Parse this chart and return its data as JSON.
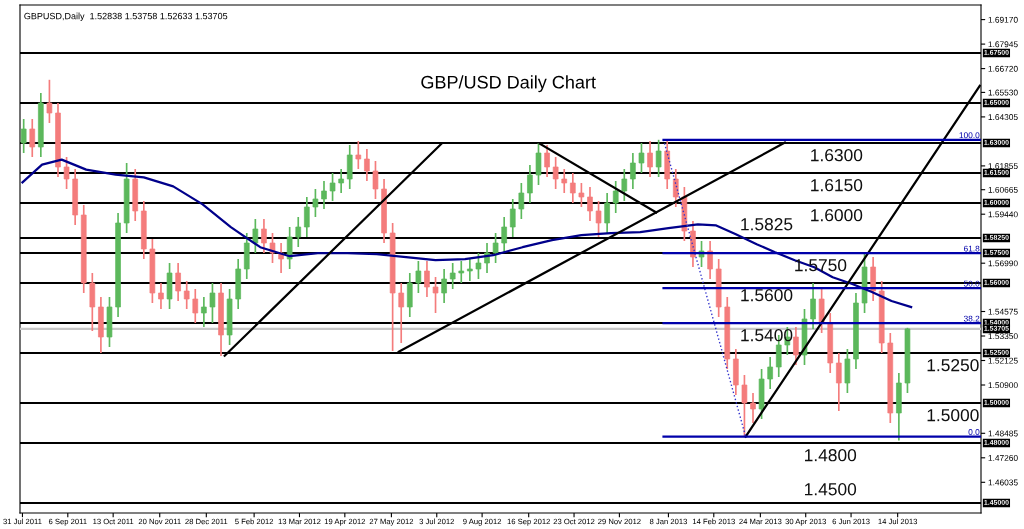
{
  "chart_data": {
    "type": "candlestick",
    "title": "GBP/USD Daily Chart",
    "subtitle": "GBPUSD,Daily  1.52838 1.53758 1.52633 1.53705",
    "x": [
      "2011-08-01",
      "2011-08-08",
      "2011-08-15",
      "2011-08-22",
      "2011-08-29",
      "2011-09-05",
      "2011-09-12",
      "2011-09-19",
      "2011-09-26",
      "2011-10-03",
      "2011-10-10",
      "2011-10-17",
      "2011-10-24",
      "2011-10-31",
      "2011-11-07",
      "2011-11-14",
      "2011-11-21",
      "2011-11-28",
      "2011-12-05",
      "2011-12-12",
      "2011-12-19",
      "2011-12-26",
      "2012-01-02",
      "2012-01-09",
      "2012-01-16",
      "2012-01-23",
      "2012-01-30",
      "2012-02-06",
      "2012-02-13",
      "2012-02-20",
      "2012-02-27",
      "2012-03-05",
      "2012-03-12",
      "2012-03-19",
      "2012-03-26",
      "2012-04-02",
      "2012-04-09",
      "2012-04-16",
      "2012-04-23",
      "2012-04-30",
      "2012-05-07",
      "2012-05-14",
      "2012-05-21",
      "2012-05-28",
      "2012-06-04",
      "2012-06-11",
      "2012-06-18",
      "2012-06-25",
      "2012-07-02",
      "2012-07-09",
      "2012-07-16",
      "2012-07-23",
      "2012-07-30",
      "2012-08-06",
      "2012-08-13",
      "2012-08-20",
      "2012-08-27",
      "2012-09-03",
      "2012-09-10",
      "2012-09-17",
      "2012-09-24",
      "2012-10-01",
      "2012-10-08",
      "2012-10-15",
      "2012-10-22",
      "2012-10-29",
      "2012-11-05",
      "2012-11-12",
      "2012-11-19",
      "2012-11-26",
      "2012-12-03",
      "2012-12-10",
      "2012-12-17",
      "2012-12-24",
      "2012-12-31",
      "2013-01-07",
      "2013-01-14",
      "2013-01-21",
      "2013-01-28",
      "2013-02-04",
      "2013-02-11",
      "2013-02-18",
      "2013-02-25",
      "2013-03-04",
      "2013-03-11",
      "2013-03-18",
      "2013-03-25",
      "2013-04-01",
      "2013-04-08",
      "2013-04-15",
      "2013-04-22",
      "2013-04-29",
      "2013-05-06",
      "2013-05-13",
      "2013-05-20",
      "2013-05-27",
      "2013-06-03",
      "2013-06-10",
      "2013-06-17",
      "2013-06-24",
      "2013-07-01",
      "2013-07-08",
      "2013-07-15",
      "2013-07-22"
    ],
    "ohlc": [
      [
        1.63,
        1.642,
        1.625,
        1.637
      ],
      [
        1.637,
        1.642,
        1.623,
        1.628
      ],
      [
        1.628,
        1.655,
        1.623,
        1.65
      ],
      [
        1.65,
        1.6616,
        1.64,
        1.645
      ],
      [
        1.645,
        1.65,
        1.613,
        1.618
      ],
      [
        1.618,
        1.623,
        1.607,
        1.612
      ],
      [
        1.612,
        1.617,
        1.589,
        1.594
      ],
      [
        1.594,
        1.599,
        1.555,
        1.56
      ],
      [
        1.56,
        1.565,
        1.536,
        1.548
      ],
      [
        1.548,
        1.553,
        1.525,
        1.533
      ],
      [
        1.533,
        1.553,
        1.528,
        1.548
      ],
      [
        1.548,
        1.595,
        1.543,
        1.59
      ],
      [
        1.59,
        1.62,
        1.585,
        1.612
      ],
      [
        1.612,
        1.617,
        1.591,
        1.596
      ],
      [
        1.596,
        1.601,
        1.572,
        1.577
      ],
      [
        1.577,
        1.582,
        1.55,
        1.555
      ],
      [
        1.555,
        1.56,
        1.547,
        1.552
      ],
      [
        1.552,
        1.57,
        1.547,
        1.565
      ],
      [
        1.565,
        1.57,
        1.551,
        1.556
      ],
      [
        1.556,
        1.561,
        1.547,
        1.552
      ],
      [
        1.552,
        1.557,
        1.54,
        1.545
      ],
      [
        1.545,
        1.553,
        1.538,
        1.548
      ],
      [
        1.548,
        1.56,
        1.54,
        1.555
      ],
      [
        1.555,
        1.56,
        1.5235,
        1.534
      ],
      [
        1.534,
        1.557,
        1.529,
        1.552
      ],
      [
        1.552,
        1.572,
        1.547,
        1.567
      ],
      [
        1.567,
        1.585,
        1.562,
        1.58
      ],
      [
        1.58,
        1.592,
        1.575,
        1.587
      ],
      [
        1.587,
        1.592,
        1.575,
        1.58
      ],
      [
        1.58,
        1.585,
        1.57,
        1.575
      ],
      [
        1.575,
        1.58,
        1.565,
        1.572
      ],
      [
        1.572,
        1.588,
        1.567,
        1.583
      ],
      [
        1.583,
        1.593,
        1.578,
        1.588
      ],
      [
        1.588,
        1.603,
        1.583,
        1.598
      ],
      [
        1.598,
        1.607,
        1.593,
        1.602
      ],
      [
        1.602,
        1.611,
        1.597,
        1.606
      ],
      [
        1.606,
        1.615,
        1.601,
        1.61
      ],
      [
        1.61,
        1.617,
        1.605,
        1.612
      ],
      [
        1.612,
        1.629,
        1.607,
        1.624
      ],
      [
        1.624,
        1.631,
        1.617,
        1.622
      ],
      [
        1.622,
        1.627,
        1.611,
        1.616
      ],
      [
        1.616,
        1.621,
        1.602,
        1.607
      ],
      [
        1.607,
        1.612,
        1.58,
        1.585
      ],
      [
        1.585,
        1.59,
        1.526,
        1.555
      ],
      [
        1.555,
        1.56,
        1.53,
        1.548
      ],
      [
        1.548,
        1.565,
        1.543,
        1.56
      ],
      [
        1.56,
        1.571,
        1.555,
        1.566
      ],
      [
        1.566,
        1.571,
        1.553,
        1.558
      ],
      [
        1.558,
        1.563,
        1.545,
        1.555
      ],
      [
        1.555,
        1.567,
        1.55,
        1.562
      ],
      [
        1.562,
        1.57,
        1.557,
        1.565
      ],
      [
        1.565,
        1.571,
        1.56,
        1.566
      ],
      [
        1.566,
        1.572,
        1.561,
        1.567
      ],
      [
        1.567,
        1.575,
        1.562,
        1.57
      ],
      [
        1.57,
        1.58,
        1.565,
        1.575
      ],
      [
        1.575,
        1.585,
        1.57,
        1.58
      ],
      [
        1.58,
        1.593,
        1.575,
        1.588
      ],
      [
        1.588,
        1.602,
        1.583,
        1.597
      ],
      [
        1.597,
        1.61,
        1.592,
        1.605
      ],
      [
        1.605,
        1.619,
        1.6,
        1.614
      ],
      [
        1.614,
        1.63,
        1.609,
        1.625
      ],
      [
        1.625,
        1.629,
        1.613,
        1.618
      ],
      [
        1.618,
        1.623,
        1.607,
        1.612
      ],
      [
        1.612,
        1.617,
        1.605,
        1.61
      ],
      [
        1.61,
        1.615,
        1.6,
        1.605
      ],
      [
        1.605,
        1.61,
        1.598,
        1.603
      ],
      [
        1.603,
        1.608,
        1.591,
        1.596
      ],
      [
        1.596,
        1.601,
        1.583,
        1.59
      ],
      [
        1.59,
        1.605,
        1.585,
        1.6
      ],
      [
        1.6,
        1.611,
        1.595,
        1.606
      ],
      [
        1.606,
        1.617,
        1.601,
        1.612
      ],
      [
        1.612,
        1.625,
        1.607,
        1.62
      ],
      [
        1.62,
        1.63,
        1.615,
        1.625
      ],
      [
        1.625,
        1.631,
        1.613,
        1.618
      ],
      [
        1.618,
        1.6316,
        1.613,
        1.626
      ],
      [
        1.626,
        1.631,
        1.607,
        1.612
      ],
      [
        1.612,
        1.617,
        1.598,
        1.603
      ],
      [
        1.603,
        1.608,
        1.581,
        1.586
      ],
      [
        1.586,
        1.591,
        1.568,
        1.573
      ],
      [
        1.573,
        1.581,
        1.568,
        1.576
      ],
      [
        1.576,
        1.581,
        1.562,
        1.567
      ],
      [
        1.567,
        1.572,
        1.543,
        1.548
      ],
      [
        1.548,
        1.553,
        1.517,
        1.522
      ],
      [
        1.522,
        1.527,
        1.504,
        1.509
      ],
      [
        1.509,
        1.514,
        1.4832,
        1.5
      ],
      [
        1.5,
        1.505,
        1.49,
        1.497
      ],
      [
        1.497,
        1.517,
        1.492,
        1.512
      ],
      [
        1.512,
        1.523,
        1.507,
        1.518
      ],
      [
        1.518,
        1.534,
        1.513,
        1.529
      ],
      [
        1.529,
        1.538,
        1.524,
        1.533
      ],
      [
        1.533,
        1.538,
        1.519,
        1.524
      ],
      [
        1.524,
        1.547,
        1.519,
        1.542
      ],
      [
        1.542,
        1.56,
        1.537,
        1.552
      ],
      [
        1.552,
        1.557,
        1.535,
        1.54
      ],
      [
        1.54,
        1.545,
        1.515,
        1.52
      ],
      [
        1.52,
        1.525,
        1.496,
        1.51
      ],
      [
        1.51,
        1.527,
        1.505,
        1.522
      ],
      [
        1.522,
        1.555,
        1.517,
        1.55
      ],
      [
        1.55,
        1.575,
        1.545,
        1.568
      ],
      [
        1.568,
        1.573,
        1.551,
        1.556
      ],
      [
        1.556,
        1.561,
        1.525,
        1.53
      ],
      [
        1.53,
        1.535,
        1.49,
        1.495
      ],
      [
        1.495,
        1.515,
        1.4813,
        1.51
      ],
      [
        1.51,
        1.53758,
        1.505,
        1.53705
      ]
    ],
    "series": [
      {
        "type": "line",
        "color": "#00008b",
        "x": [
          "2011-07-31",
          "2011-08-16",
          "2011-09-01",
          "2011-09-21",
          "2011-10-15",
          "2011-11-07",
          "2011-12-01",
          "2011-12-25",
          "2012-01-17",
          "2012-02-10",
          "2012-03-05",
          "2012-03-28",
          "2012-04-21",
          "2012-05-15",
          "2012-06-08",
          "2012-07-02",
          "2012-07-26",
          "2012-08-18",
          "2012-09-11",
          "2012-10-05",
          "2012-10-29",
          "2012-11-22",
          "2012-12-16",
          "2013-01-08",
          "2013-02-01",
          "2013-02-16",
          "2013-03-04",
          "2013-03-21",
          "2013-04-05",
          "2013-04-21",
          "2013-05-07",
          "2013-05-22",
          "2013-06-07",
          "2013-06-23",
          "2013-07-09",
          "2013-07-25"
        ],
        "values": [
          1.6103,
          1.6192,
          1.6217,
          1.6167,
          1.6142,
          1.6128,
          1.6083,
          1.5993,
          1.5879,
          1.5779,
          1.5734,
          1.5749,
          1.5749,
          1.5744,
          1.5729,
          1.5714,
          1.5719,
          1.5739,
          1.5779,
          1.5814,
          1.5839,
          1.5849,
          1.5854,
          1.5874,
          1.5893,
          1.5888,
          1.5844,
          1.5794,
          1.5754,
          1.5714,
          1.5679,
          1.5629,
          1.5595,
          1.5555,
          1.551,
          1.548
        ]
      },
      {
        "type": "line",
        "color": "#000000",
        "x": [
          "2012-01-12",
          "2012-07-07"
        ],
        "values": [
          1.5236,
          1.6297
        ]
      },
      {
        "type": "line",
        "color": "#000000",
        "x": [
          "2012-06-02",
          "2013-04-13"
        ],
        "values": [
          1.5256,
          1.6302
        ]
      },
      {
        "type": "line",
        "color": "#000000",
        "x": [
          "2012-09-25",
          "2012-12-29"
        ],
        "values": [
          1.6297,
          1.5953
        ]
      },
      {
        "type": "line",
        "color": "#000000",
        "x": [
          "2013-03-12",
          "2013-09-19"
        ],
        "values": [
          1.4832,
          1.6586
        ]
      },
      {
        "type": "line",
        "color": "#3333cc",
        "line_style": "dotted",
        "x": [
          "2013-01-04",
          "2013-03-12"
        ],
        "values": [
          1.6316,
          1.4832
        ]
      },
      {
        "type": "line",
        "color": "#0000aa",
        "x": [
          "2013-01-04",
          "2013-09-20"
        ],
        "values": [
          1.6316,
          1.6316
        ]
      },
      {
        "type": "line",
        "color": "#0000aa",
        "x": [
          "2013-01-04",
          "2013-09-20"
        ],
        "values": [
          1.5749,
          1.5749
        ]
      },
      {
        "type": "line",
        "color": "#0000aa",
        "x": [
          "2013-01-04",
          "2013-09-20"
        ],
        "values": [
          1.5574,
          1.5574
        ]
      },
      {
        "type": "line",
        "color": "#0000aa",
        "x": [
          "2013-01-04",
          "2013-09-20"
        ],
        "values": [
          1.5399,
          1.5399
        ]
      },
      {
        "type": "line",
        "color": "#0000aa",
        "x": [
          "2013-01-04",
          "2013-09-20"
        ],
        "values": [
          1.4832,
          1.4832
        ]
      }
    ],
    "ref_lines": [
      {
        "axis": "y",
        "value": 1.675,
        "label": "1.67500"
      },
      {
        "axis": "y",
        "value": 1.65,
        "label": "1.65000"
      },
      {
        "axis": "y",
        "value": 1.63,
        "label": "1.63000"
      },
      {
        "axis": "y",
        "value": 1.615,
        "label": "1.61500"
      },
      {
        "axis": "y",
        "value": 1.6,
        "label": "1.60000"
      },
      {
        "axis": "y",
        "value": 1.5825,
        "label": "1.58250"
      },
      {
        "axis": "y",
        "value": 1.575,
        "label": "1.57500"
      },
      {
        "axis": "y",
        "value": 1.56,
        "label": "1.56000"
      },
      {
        "axis": "y",
        "value": 1.54,
        "label": "1.54000"
      },
      {
        "axis": "y",
        "value": 1.53705,
        "label": "1.53705",
        "color": "#c8c8c8"
      },
      {
        "axis": "y",
        "value": 1.525,
        "label": "1.52500"
      },
      {
        "axis": "y",
        "value": 1.5,
        "label": "1.50000"
      },
      {
        "axis": "y",
        "value": 1.48,
        "label": "1.48000"
      },
      {
        "axis": "y",
        "value": 1.45,
        "label": "1.45000"
      }
    ],
    "annotations": [
      {
        "text": "1.6300",
        "x": "2013-05-25",
        "y": 1.63
      },
      {
        "text": "1.6150",
        "x": "2013-05-25",
        "y": 1.615
      },
      {
        "text": "1.6000",
        "x": "2013-05-25",
        "y": 1.6
      },
      {
        "text": "1.5825",
        "x": "2013-03-29",
        "y": 1.5825
      },
      {
        "text": "1.5750",
        "x": "2013-05-12",
        "y": 1.575
      },
      {
        "text": "1.5600",
        "x": "2013-03-29",
        "y": 1.56
      },
      {
        "text": "1.5400",
        "x": "2013-03-29",
        "y": 1.54
      },
      {
        "text": "1.5250",
        "x": "2013-08-28",
        "y": 1.525
      },
      {
        "text": "1.5000",
        "x": "2013-08-28",
        "y": 1.5
      },
      {
        "text": "1.4800",
        "x": "2013-05-20",
        "y": 1.48
      },
      {
        "text": "1.4500",
        "x": "2013-05-20",
        "y": 1.45
      },
      {
        "text": "100.0",
        "x": "2013-09-19",
        "y": 1.6316
      },
      {
        "text": "61.8",
        "x": "2013-09-19",
        "y": 1.5749
      },
      {
        "text": "50.0",
        "x": "2013-09-19",
        "y": 1.5574
      },
      {
        "text": "38.2",
        "x": "2013-09-19",
        "y": 1.5399
      },
      {
        "text": "0.0",
        "x": "2013-09-19",
        "y": 1.4832
      }
    ],
    "xlim": [
      "2011-07-29",
      "2013-09-20"
    ],
    "xticks": [
      {
        "value": "2011-07-31",
        "label": "31 Jul 2011"
      },
      {
        "value": "2011-09-06",
        "label": "6 Sep 2011"
      },
      {
        "value": "2011-10-13",
        "label": "13 Oct 2011"
      },
      {
        "value": "2011-11-20",
        "label": "20 Nov 2011"
      },
      {
        "value": "2011-12-28",
        "label": "28 Dec 2011"
      },
      {
        "value": "2012-02-05",
        "label": "5 Feb 2012"
      },
      {
        "value": "2012-03-13",
        "label": "13 Mar 2012"
      },
      {
        "value": "2012-04-19",
        "label": "19 Apr 2012"
      },
      {
        "value": "2012-05-27",
        "label": "27 May 2012"
      },
      {
        "value": "2012-07-03",
        "label": "3 Jul 2012"
      },
      {
        "value": "2012-08-09",
        "label": "9 Aug 2012"
      },
      {
        "value": "2012-09-16",
        "label": "16 Sep 2012"
      },
      {
        "value": "2012-10-23",
        "label": "23 Oct 2012"
      },
      {
        "value": "2012-11-29",
        "label": "29 Nov 2012"
      },
      {
        "value": "2013-01-08",
        "label": "8 Jan 2013"
      },
      {
        "value": "2013-02-14",
        "label": "14 Feb 2013"
      },
      {
        "value": "2013-03-24",
        "label": "24 Mar 2013"
      },
      {
        "value": "2013-04-30",
        "label": "30 Apr 2013"
      },
      {
        "value": "2013-06-06",
        "label": "6 Jun 2013"
      },
      {
        "value": "2013-07-14",
        "label": "14 Jul 2013"
      }
    ],
    "ylim": [
      1.445,
      1.699
    ],
    "yticks": [
      {
        "value": 1.6917,
        "label": "1.69170"
      },
      {
        "value": 1.67945,
        "label": "1.67945"
      },
      {
        "value": 1.6672,
        "label": "1.66720"
      },
      {
        "value": 1.6553,
        "label": "1.65530"
      },
      {
        "value": 1.64305,
        "label": "1.64305"
      },
      {
        "value": 1.61855,
        "label": "1.61855"
      },
      {
        "value": 1.60665,
        "label": "1.60665"
      },
      {
        "value": 1.5944,
        "label": "1.59440"
      },
      {
        "value": 1.5699,
        "label": "1.56990"
      },
      {
        "value": 1.54575,
        "label": "1.54575"
      },
      {
        "value": 1.5335,
        "label": "1.53350"
      },
      {
        "value": 1.52125,
        "label": "1.52125"
      },
      {
        "value": 1.509,
        "label": "1.50900"
      },
      {
        "value": 1.48485,
        "label": "1.48485"
      },
      {
        "value": 1.4726,
        "label": "1.47260"
      },
      {
        "value": 1.46035,
        "label": "1.46035"
      }
    ]
  }
}
